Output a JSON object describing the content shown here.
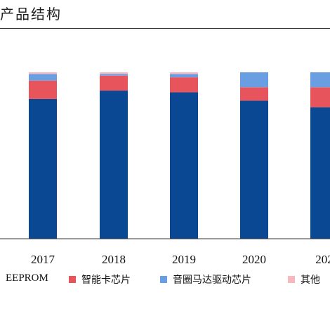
{
  "title": "产品结构",
  "chart_data": {
    "type": "bar",
    "stacked": true,
    "categories": [
      "2017",
      "2018",
      "2019",
      "2020",
      "202"
    ],
    "ylim": [
      0,
      1
    ],
    "series": [
      {
        "name": "EEPROM",
        "color": "#0B4894",
        "values": [
          0.84,
          0.89,
          0.88,
          0.83,
          0.79
        ]
      },
      {
        "name": "智能卡芯片",
        "color": "#E8545C",
        "values": [
          0.11,
          0.09,
          0.09,
          0.08,
          0.12
        ]
      },
      {
        "name": "音圈马达驱动芯片",
        "color": "#6A9EE3",
        "values": [
          0.04,
          0.01,
          0.02,
          0.09,
          0.09
        ]
      },
      {
        "name": "其他",
        "color": "#F6B7BF",
        "values": [
          0.01,
          0.01,
          0.01,
          0.0,
          0.0
        ]
      }
    ]
  }
}
